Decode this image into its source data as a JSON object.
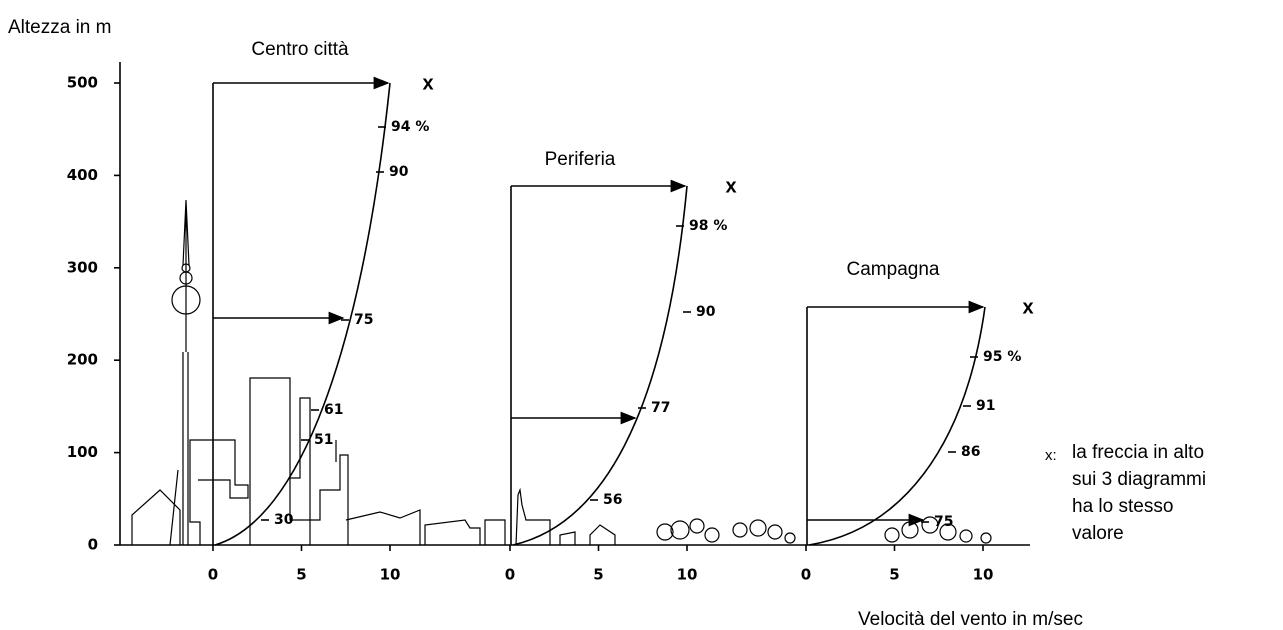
{
  "y_axis": {
    "label": "Altezza in m",
    "ticks": [
      0,
      100,
      200,
      300,
      400,
      500
    ]
  },
  "x_axis": {
    "label": "Velocità del vento in m/sec"
  },
  "panels": [
    {
      "title": "Centro città",
      "xticks": [
        0,
        5,
        10
      ],
      "marker": "x",
      "labels": [
        "94 %",
        "90",
        "75",
        "61",
        "51",
        "30"
      ]
    },
    {
      "title": "Periferia",
      "xticks": [
        0,
        5,
        10
      ],
      "marker": "x",
      "labels": [
        "98 %",
        "90",
        "77",
        "56"
      ]
    },
    {
      "title": "Campagna",
      "xticks": [
        0,
        5,
        10
      ],
      "marker": "x",
      "labels": [
        "95 %",
        "91",
        "86",
        "75"
      ]
    }
  ],
  "note": {
    "symbol": "x:",
    "lines": [
      "la freccia in  alto",
      "sui 3 diagrammi",
      "ha lo stesso",
      "valore"
    ]
  }
}
